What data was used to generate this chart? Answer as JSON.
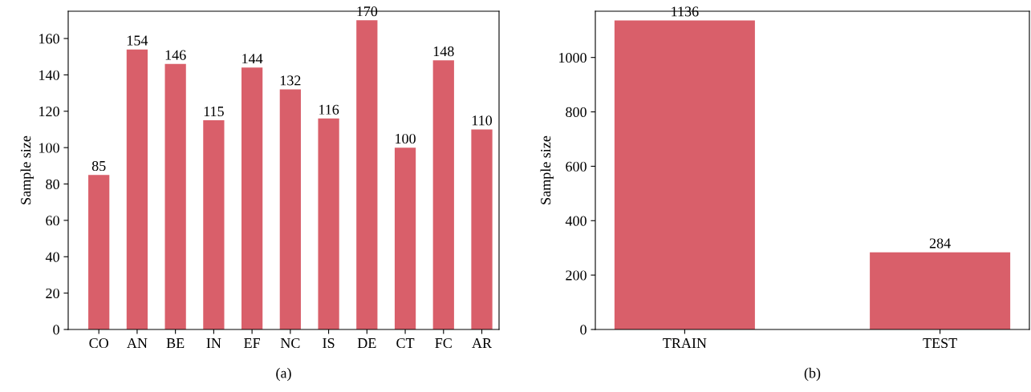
{
  "chart_data": [
    {
      "type": "bar",
      "ylabel": "Sample size",
      "categories": [
        "CO",
        "AN",
        "BE",
        "IN",
        "EF",
        "NC",
        "IS",
        "DE",
        "CT",
        "FC",
        "AR"
      ],
      "values": [
        85,
        154,
        146,
        115,
        144,
        132,
        116,
        170,
        100,
        148,
        110
      ],
      "color": "#d95f6a",
      "ylim": [
        0,
        175
      ],
      "yticks": [
        0,
        20,
        40,
        60,
        80,
        100,
        120,
        140,
        160
      ],
      "data_labels": true,
      "grid": false,
      "legend": false,
      "annotations": [
        "(a)"
      ]
    },
    {
      "type": "bar",
      "ylabel": "Sample size",
      "categories": [
        "TRAIN",
        "TEST"
      ],
      "values": [
        1136,
        284
      ],
      "color": "#d95f6a",
      "ylim": [
        0,
        1170
      ],
      "yticks": [
        0,
        200,
        400,
        600,
        800,
        1000
      ],
      "data_labels": true,
      "grid": false,
      "legend": false,
      "annotations": [
        "(b)"
      ]
    }
  ]
}
